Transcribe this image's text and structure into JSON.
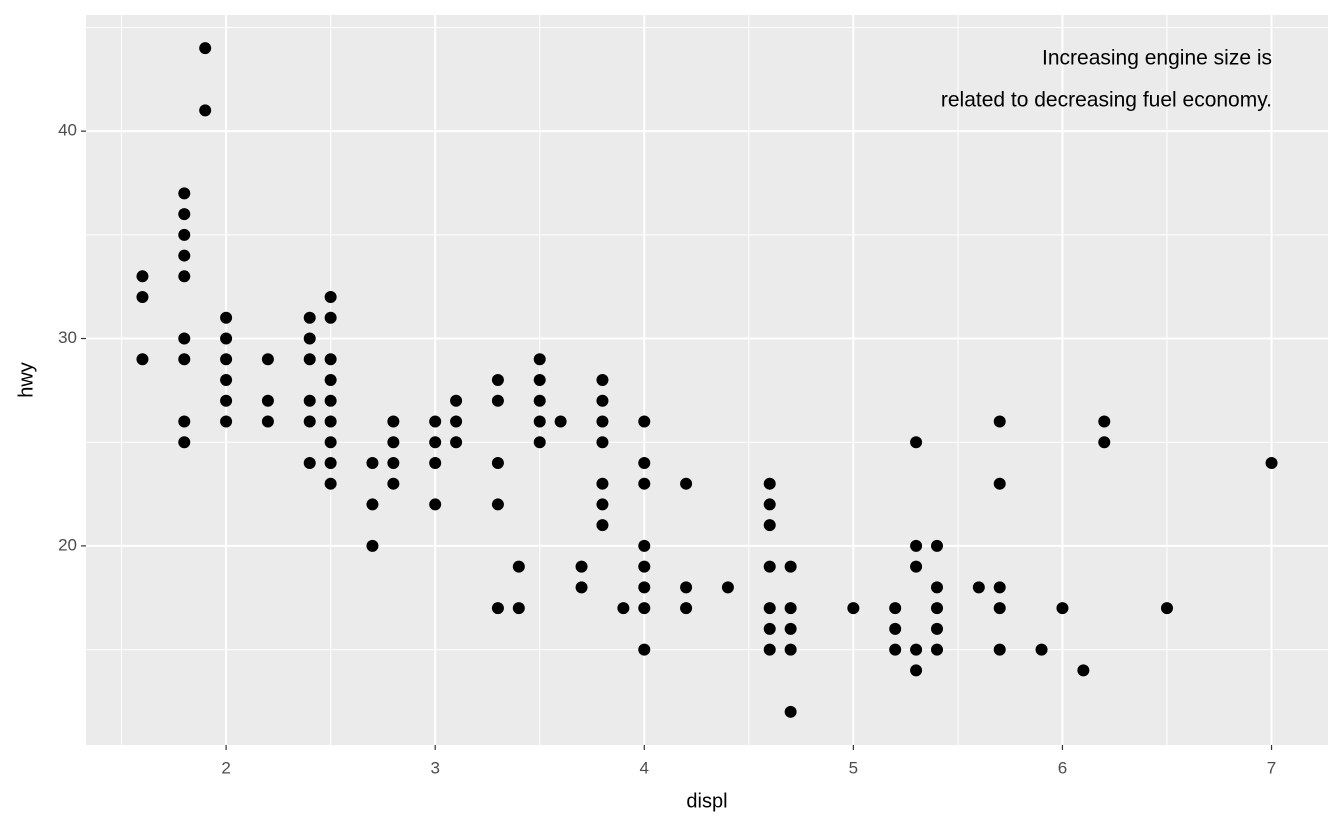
{
  "chart_data": {
    "type": "scatter",
    "x_label": "displ",
    "y_label": "hwy",
    "annotation": [
      "Increasing engine size is",
      "related to decreasing fuel economy."
    ],
    "color": "#000000",
    "background": "#ebebeb",
    "grid": true,
    "xlim": [
      1.33,
      7.27
    ],
    "ylim": [
      10.4,
      45.6
    ],
    "xticks": [
      2,
      3,
      4,
      5,
      6,
      7
    ],
    "yticks": [
      20,
      30,
      40
    ],
    "xminor": [
      1.5,
      2.5,
      3.5,
      4.5,
      5.5,
      6.5
    ],
    "yminor": [
      15,
      25,
      35,
      45
    ],
    "x": [
      1.6,
      1.6,
      1.6,
      1.8,
      1.8,
      1.8,
      1.8,
      1.8,
      1.8,
      1.8,
      1.8,
      1.8,
      1.9,
      1.9,
      2,
      2,
      2,
      2,
      2,
      2,
      2.2,
      2.2,
      2.2,
      2.4,
      2.4,
      2.4,
      2.4,
      2.4,
      2.4,
      2.5,
      2.5,
      2.5,
      2.5,
      2.5,
      2.5,
      2.5,
      2.5,
      2.5,
      2.7,
      2.7,
      2.7,
      2.8,
      2.8,
      2.8,
      2.8,
      3,
      3,
      3,
      3,
      3.1,
      3.1,
      3.1,
      3.3,
      3.3,
      3.3,
      3.3,
      3.3,
      3.4,
      3.4,
      3.5,
      3.5,
      3.5,
      3.5,
      3.5,
      3.6,
      3.7,
      3.7,
      3.8,
      3.8,
      3.8,
      3.8,
      3.8,
      3.8,
      3.8,
      3.9,
      4,
      4,
      4,
      4,
      4,
      4,
      4,
      4,
      4.2,
      4.2,
      4.2,
      4.4,
      4.6,
      4.6,
      4.6,
      4.6,
      4.6,
      4.6,
      4.6,
      4.7,
      4.7,
      4.7,
      4.7,
      4.7,
      5,
      5.2,
      5.2,
      5.2,
      5.3,
      5.3,
      5.3,
      5.3,
      5.3,
      5.4,
      5.4,
      5.4,
      5.4,
      5.4,
      5.6,
      5.7,
      5.7,
      5.7,
      5.7,
      5.7,
      5.9,
      6,
      6.1,
      6.2,
      6.2,
      6.5,
      7
    ],
    "y": [
      33,
      32,
      29,
      37,
      36,
      35,
      34,
      33,
      30,
      29,
      26,
      25,
      44,
      41,
      31,
      30,
      29,
      28,
      27,
      26,
      29,
      27,
      26,
      31,
      30,
      29,
      27,
      26,
      24,
      32,
      31,
      29,
      28,
      27,
      26,
      25,
      24,
      23,
      24,
      22,
      20,
      26,
      25,
      24,
      23,
      26,
      25,
      24,
      22,
      27,
      26,
      25,
      28,
      27,
      24,
      22,
      17,
      19,
      17,
      29,
      28,
      27,
      26,
      25,
      26,
      19,
      18,
      28,
      27,
      26,
      25,
      23,
      22,
      21,
      17,
      26,
      24,
      23,
      20,
      19,
      18,
      17,
      15,
      23,
      18,
      17,
      18,
      23,
      22,
      21,
      19,
      17,
      16,
      15,
      19,
      17,
      16,
      15,
      12,
      17,
      17,
      16,
      15,
      25,
      20,
      19,
      15,
      14,
      20,
      18,
      17,
      16,
      15,
      18,
      26,
      23,
      18,
      17,
      15,
      15,
      17,
      14,
      26,
      25,
      17,
      24
    ]
  }
}
